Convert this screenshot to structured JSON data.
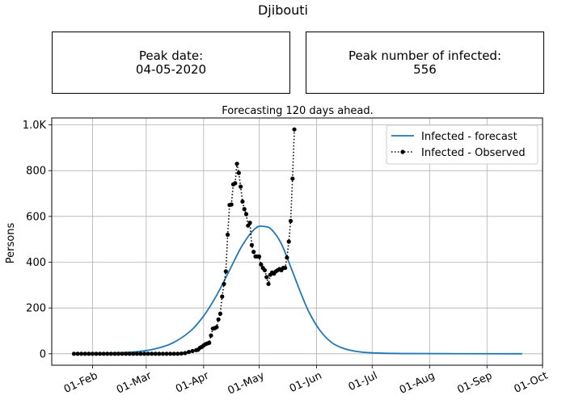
{
  "title": "Djibouti",
  "stats": {
    "peak_date_label": "Peak date:",
    "peak_date_value": "04-05-2020",
    "peak_number_label": "Peak number of infected:",
    "peak_number_value": "556"
  },
  "chart_data": {
    "type": "line",
    "subtitle": "Forecasting 120 days ahead.",
    "ylabel": "Persons",
    "xlabel": "",
    "xlim": [
      "2020-01-10",
      "2020-10-01"
    ],
    "ylim": [
      -50,
      1030
    ],
    "x_ticks": [
      {
        "date": "2020-02-01",
        "label": "01-Feb"
      },
      {
        "date": "2020-03-01",
        "label": "01-Mar"
      },
      {
        "date": "2020-04-01",
        "label": "01-Apr"
      },
      {
        "date": "2020-05-01",
        "label": "01-May"
      },
      {
        "date": "2020-06-01",
        "label": "01-Jun"
      },
      {
        "date": "2020-07-01",
        "label": "01-Jul"
      },
      {
        "date": "2020-08-01",
        "label": "01-Aug"
      },
      {
        "date": "2020-09-01",
        "label": "01-Sep"
      },
      {
        "date": "2020-10-01",
        "label": "01-Oct"
      }
    ],
    "y_ticks": [
      {
        "value": 0,
        "label": "0"
      },
      {
        "value": 200,
        "label": "200"
      },
      {
        "value": 400,
        "label": "400"
      },
      {
        "value": 600,
        "label": "600"
      },
      {
        "value": 800,
        "label": "800"
      },
      {
        "value": 1000,
        "label": "1.0K"
      }
    ],
    "grid": true,
    "legend_position": "top-right",
    "series": [
      {
        "name": "Infected - forecast",
        "style": "solid",
        "color": "#1f77b4",
        "points": [
          [
            "2020-01-22",
            0
          ],
          [
            "2020-02-10",
            3
          ],
          [
            "2020-02-25",
            9
          ],
          [
            "2020-03-05",
            20
          ],
          [
            "2020-03-15",
            46
          ],
          [
            "2020-03-25",
            100
          ],
          [
            "2020-04-01",
            165
          ],
          [
            "2020-04-08",
            255
          ],
          [
            "2020-04-15",
            365
          ],
          [
            "2020-04-22",
            475
          ],
          [
            "2020-04-29",
            548
          ],
          [
            "2020-05-04",
            556
          ],
          [
            "2020-05-08",
            540
          ],
          [
            "2020-05-13",
            480
          ],
          [
            "2020-05-18",
            380
          ],
          [
            "2020-05-23",
            275
          ],
          [
            "2020-05-28",
            180
          ],
          [
            "2020-06-03",
            100
          ],
          [
            "2020-06-09",
            50
          ],
          [
            "2020-06-15",
            25
          ],
          [
            "2020-06-22",
            11
          ],
          [
            "2020-07-01",
            4
          ],
          [
            "2020-07-20",
            1
          ],
          [
            "2020-09-20",
            0
          ]
        ]
      },
      {
        "name": "Infected - Observed",
        "style": "dotted",
        "color": "#000000",
        "points": [
          [
            "2020-01-22",
            0
          ],
          [
            "2020-01-24",
            0
          ],
          [
            "2020-01-26",
            0
          ],
          [
            "2020-01-28",
            0
          ],
          [
            "2020-01-30",
            0
          ],
          [
            "2020-02-01",
            0
          ],
          [
            "2020-02-03",
            0
          ],
          [
            "2020-02-05",
            0
          ],
          [
            "2020-02-07",
            0
          ],
          [
            "2020-02-09",
            0
          ],
          [
            "2020-02-11",
            0
          ],
          [
            "2020-02-13",
            0
          ],
          [
            "2020-02-15",
            0
          ],
          [
            "2020-02-17",
            0
          ],
          [
            "2020-02-19",
            0
          ],
          [
            "2020-02-21",
            0
          ],
          [
            "2020-02-23",
            0
          ],
          [
            "2020-02-25",
            0
          ],
          [
            "2020-02-27",
            0
          ],
          [
            "2020-02-29",
            0
          ],
          [
            "2020-03-02",
            0
          ],
          [
            "2020-03-04",
            0
          ],
          [
            "2020-03-06",
            0
          ],
          [
            "2020-03-08",
            0
          ],
          [
            "2020-03-10",
            0
          ],
          [
            "2020-03-12",
            0
          ],
          [
            "2020-03-14",
            0
          ],
          [
            "2020-03-16",
            0
          ],
          [
            "2020-03-18",
            0
          ],
          [
            "2020-03-20",
            1
          ],
          [
            "2020-03-22",
            3
          ],
          [
            "2020-03-24",
            8
          ],
          [
            "2020-03-26",
            12
          ],
          [
            "2020-03-28",
            16
          ],
          [
            "2020-03-29",
            18
          ],
          [
            "2020-03-30",
            26
          ],
          [
            "2020-03-31",
            30
          ],
          [
            "2020-04-01",
            36
          ],
          [
            "2020-04-02",
            42
          ],
          [
            "2020-04-03",
            45
          ],
          [
            "2020-04-04",
            48
          ],
          [
            "2020-04-05",
            80
          ],
          [
            "2020-04-06",
            110
          ],
          [
            "2020-04-07",
            112
          ],
          [
            "2020-04-08",
            116
          ],
          [
            "2020-04-09",
            150
          ],
          [
            "2020-04-10",
            175
          ],
          [
            "2020-04-11",
            250
          ],
          [
            "2020-04-12",
            305
          ],
          [
            "2020-04-13",
            360
          ],
          [
            "2020-04-14",
            520
          ],
          [
            "2020-04-15",
            650
          ],
          [
            "2020-04-16",
            652
          ],
          [
            "2020-04-17",
            740
          ],
          [
            "2020-04-18",
            745
          ],
          [
            "2020-04-19",
            830
          ],
          [
            "2020-04-20",
            790
          ],
          [
            "2020-04-21",
            730
          ],
          [
            "2020-04-22",
            665
          ],
          [
            "2020-04-23",
            632
          ],
          [
            "2020-04-24",
            610
          ],
          [
            "2020-04-25",
            560
          ],
          [
            "2020-04-26",
            572
          ],
          [
            "2020-04-27",
            475
          ],
          [
            "2020-04-28",
            445
          ],
          [
            "2020-04-29",
            425
          ],
          [
            "2020-04-30",
            425
          ],
          [
            "2020-05-01",
            425
          ],
          [
            "2020-05-02",
            390
          ],
          [
            "2020-05-03",
            375
          ],
          [
            "2020-05-04",
            365
          ],
          [
            "2020-05-05",
            335
          ],
          [
            "2020-05-06",
            305
          ],
          [
            "2020-05-07",
            345
          ],
          [
            "2020-05-08",
            355
          ],
          [
            "2020-05-09",
            350
          ],
          [
            "2020-05-10",
            360
          ],
          [
            "2020-05-11",
            365
          ],
          [
            "2020-05-12",
            370
          ],
          [
            "2020-05-13",
            365
          ],
          [
            "2020-05-14",
            375
          ],
          [
            "2020-05-15",
            375
          ],
          [
            "2020-05-16",
            420
          ],
          [
            "2020-05-17",
            490
          ],
          [
            "2020-05-18",
            580
          ],
          [
            "2020-05-19",
            765
          ],
          [
            "2020-05-20",
            980
          ]
        ]
      }
    ]
  }
}
